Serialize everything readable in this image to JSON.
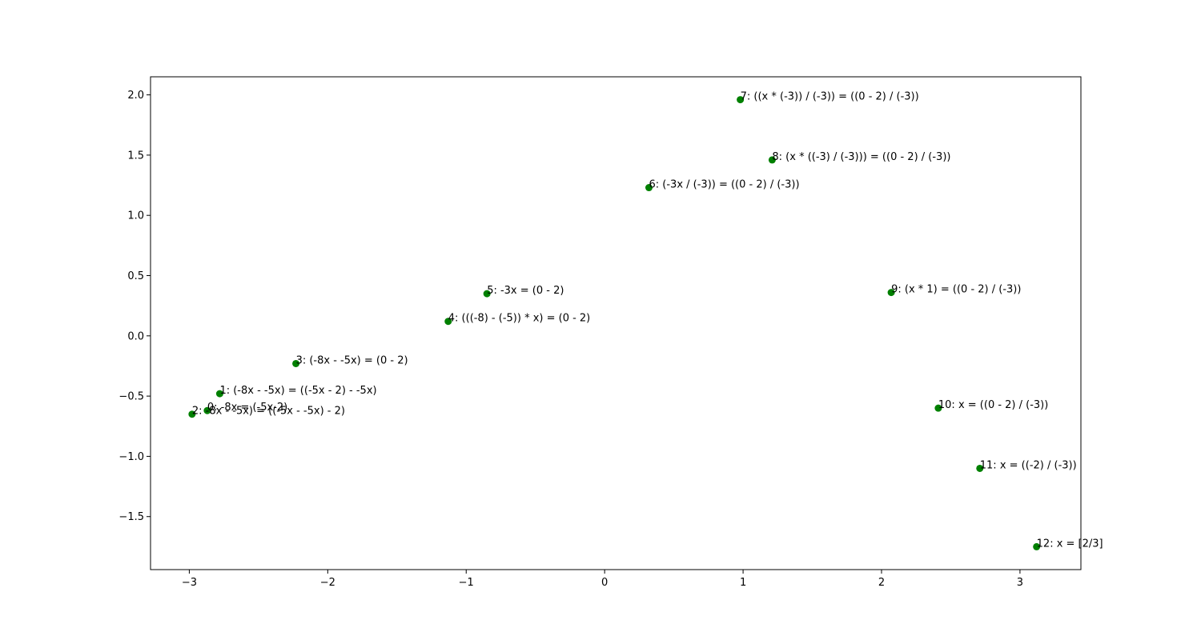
{
  "chart_data": {
    "type": "scatter",
    "title": "",
    "xlabel": "",
    "ylabel": "",
    "xlim": [
      -3.28,
      3.44
    ],
    "ylim": [
      -1.94,
      2.15
    ],
    "x_ticks": [
      -3,
      -2,
      -1,
      0,
      1,
      2,
      3
    ],
    "y_ticks": [
      -1.5,
      -1.0,
      -0.5,
      0.0,
      0.5,
      1.0,
      1.5,
      2.0
    ],
    "x_tick_labels": [
      "−3",
      "−2",
      "−1",
      "0",
      "1",
      "2",
      "3"
    ],
    "y_tick_labels": [
      "−1.5",
      "−1.0",
      "−0.5",
      "0.0",
      "0.5",
      "1.0",
      "1.5",
      "2.0"
    ],
    "grid": false,
    "marker_color": "#008000",
    "points": [
      {
        "x": -2.87,
        "y": -0.62,
        "label": "0: -8x = (-5x-2)"
      },
      {
        "x": -2.78,
        "y": -0.48,
        "label": "1: (-8x - -5x) = ((-5x - 2) - -5x)"
      },
      {
        "x": -2.98,
        "y": -0.65,
        "label": "2: -8x - -5x) = ((-5x - -5x) - 2)"
      },
      {
        "x": -2.23,
        "y": -0.23,
        "label": "3: (-8x - -5x) = (0 - 2)"
      },
      {
        "x": -1.13,
        "y": 0.12,
        "label": "4: (((-8) - (-5)) * x) = (0 - 2)"
      },
      {
        "x": -0.85,
        "y": 0.35,
        "label": "5: -3x = (0 - 2)"
      },
      {
        "x": 0.32,
        "y": 1.23,
        "label": "6: (-3x / (-3)) = ((0 - 2) / (-3))"
      },
      {
        "x": 0.98,
        "y": 1.96,
        "label": "7: ((x * (-3)) / (-3)) = ((0 - 2) / (-3))"
      },
      {
        "x": 1.21,
        "y": 1.46,
        "label": "8: (x * ((-3) / (-3))) = ((0 - 2) / (-3))"
      },
      {
        "x": 2.07,
        "y": 0.36,
        "label": "9: (x * 1) = ((0 - 2) / (-3))"
      },
      {
        "x": 2.41,
        "y": -0.6,
        "label": "10: x = ((0 - 2) / (-3))"
      },
      {
        "x": 2.71,
        "y": -1.1,
        "label": "11: x = ((-2) / (-3))"
      },
      {
        "x": 3.12,
        "y": -1.75,
        "label": "12: x = [2/3]"
      }
    ]
  }
}
